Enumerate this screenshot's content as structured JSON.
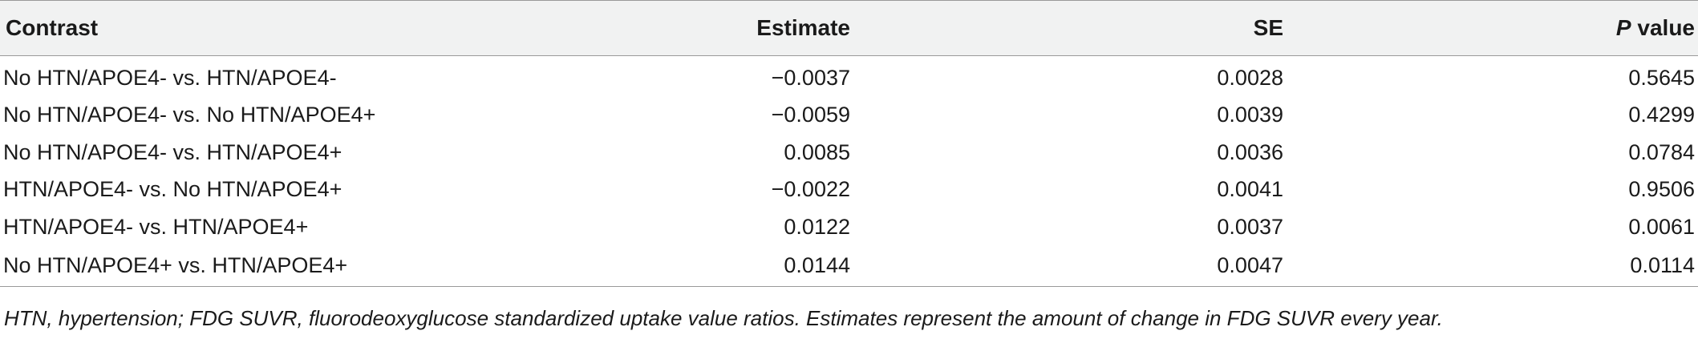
{
  "table": {
    "headers": {
      "contrast": "Contrast",
      "estimate": "Estimate",
      "se": "SE",
      "p_italic": "P",
      "p_rest": " value"
    },
    "rows": [
      {
        "contrast": "No HTN/APOE4- vs. HTN/APOE4-",
        "estimate": "−0.0037",
        "se": "0.0028",
        "p": "0.5645"
      },
      {
        "contrast": "No HTN/APOE4- vs. No HTN/APOE4+",
        "estimate": "−0.0059",
        "se": "0.0039",
        "p": "0.4299"
      },
      {
        "contrast": "No HTN/APOE4- vs. HTN/APOE4+",
        "estimate": "0.0085",
        "se": "0.0036",
        "p": "0.0784"
      },
      {
        "contrast": "HTN/APOE4- vs. No HTN/APOE4+",
        "estimate": "−0.0022",
        "se": "0.0041",
        "p": "0.9506"
      },
      {
        "contrast": "HTN/APOE4- vs. HTN/APOE4+",
        "estimate": "0.0122",
        "se": "0.0037",
        "p": "0.0061"
      },
      {
        "contrast": "No HTN/APOE4+ vs. HTN/APOE4+",
        "estimate": "0.0144",
        "se": "0.0047",
        "p": "0.0114"
      }
    ]
  },
  "footnote": "HTN, hypertension; FDG SUVR, fluorodeoxyglucose standardized uptake value ratios. Estimates represent the amount of change in FDG SUVR every year."
}
